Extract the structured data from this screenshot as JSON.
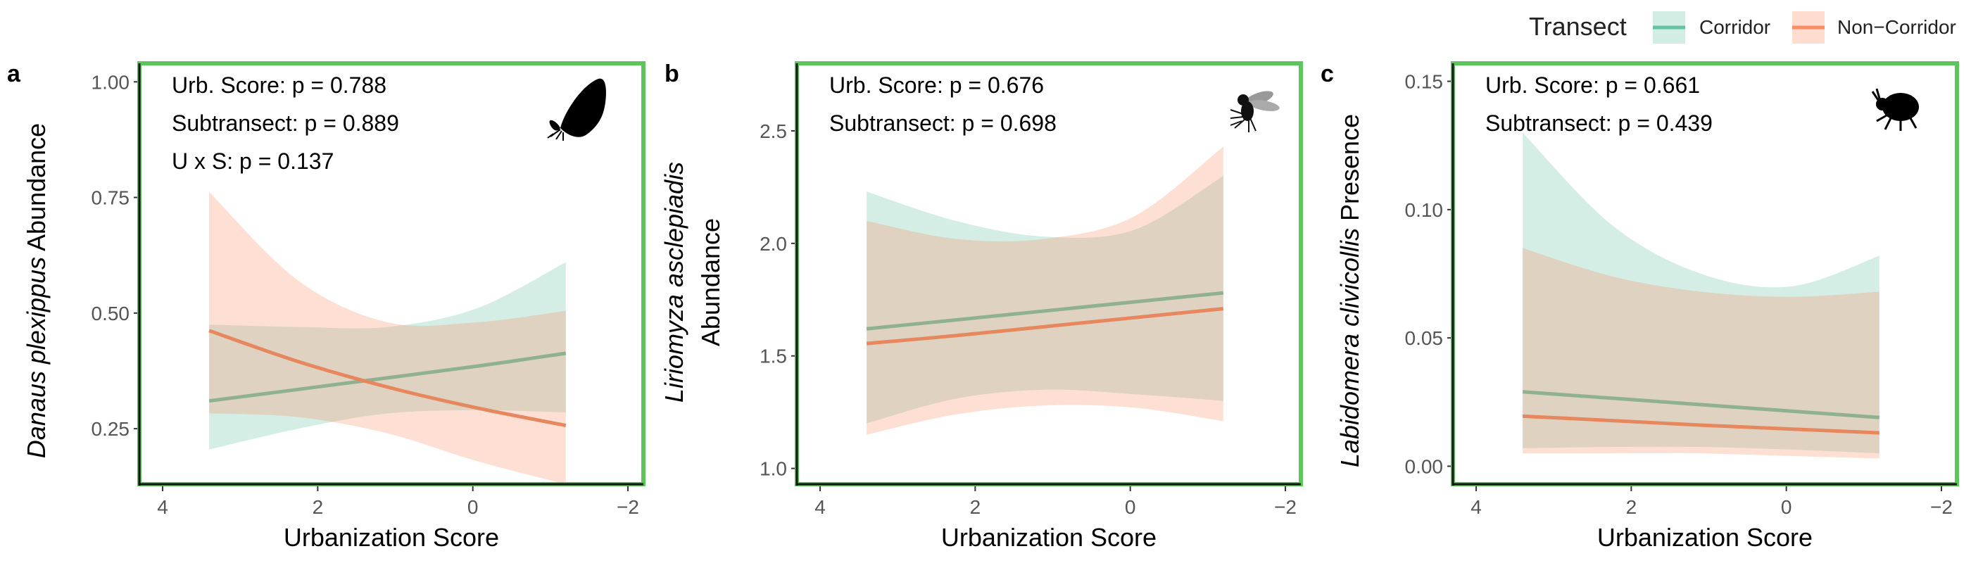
{
  "legend": {
    "title": "Transect",
    "items": [
      {
        "label": "Corridor",
        "color": "#66c2a5"
      },
      {
        "label": "Non−Corridor",
        "color": "#fc8d62"
      }
    ]
  },
  "colors": {
    "corridor_line": "#8fb18f",
    "noncorridor_line": "#e6875e",
    "corridor_band": "#66c2a5",
    "noncorridor_band": "#fc8d62",
    "frame": "#5cc65c"
  },
  "chart_data": [
    {
      "panel": "a",
      "type": "line",
      "organism_icon": "butterfly-icon",
      "xlabel": "Urbanization Score",
      "ylabel_italic": "Danaus plexippus",
      "ylabel_rest": " Abundance",
      "xlim": [
        4.3,
        -2.2
      ],
      "ylim": [
        0.13,
        1.04
      ],
      "xticks": [
        4,
        2,
        0,
        -2
      ],
      "xtick_labels": [
        "4",
        "2",
        "0",
        "−2"
      ],
      "yticks": [
        0.25,
        0.5,
        0.75,
        1.0
      ],
      "ytick_labels": [
        "0.25",
        "0.50",
        "0.75",
        "1.00"
      ],
      "annotations": [
        "Urb. Score: p = 0.788",
        "Subtransect: p = 0.889",
        "U x S: p = 0.137"
      ],
      "x": [
        3.4,
        2.25,
        1.1,
        -0.05,
        -1.2
      ],
      "series": [
        {
          "name": "Corridor",
          "values": [
            0.31,
            0.335,
            0.36,
            0.385,
            0.413
          ],
          "lower": [
            0.205,
            0.25,
            0.283,
            0.29,
            0.285
          ],
          "upper": [
            0.475,
            0.47,
            0.47,
            0.51,
            0.61
          ]
        },
        {
          "name": "Non−Corridor",
          "values": [
            0.462,
            0.395,
            0.34,
            0.295,
            0.257
          ],
          "lower": [
            0.283,
            0.275,
            0.24,
            0.18,
            0.13
          ],
          "upper": [
            0.762,
            0.57,
            0.48,
            0.48,
            0.505
          ]
        }
      ]
    },
    {
      "panel": "b",
      "type": "line",
      "organism_icon": "fly-icon",
      "xlabel": "Urbanization Score",
      "ylabel_italic": "Liriomyza asclepiadis",
      "ylabel_line2": "Abundance",
      "xlim": [
        4.3,
        -2.2
      ],
      "ylim": [
        0.93,
        2.8
      ],
      "xticks": [
        4,
        2,
        0,
        -2
      ],
      "xtick_labels": [
        "4",
        "2",
        "0",
        "−2"
      ],
      "yticks": [
        1.0,
        1.5,
        2.0,
        2.5
      ],
      "ytick_labels": [
        "1.0",
        "1.5",
        "2.0",
        "2.5"
      ],
      "annotations": [
        "Urb. Score: p = 0.676",
        "Subtransect: p = 0.698"
      ],
      "x": [
        3.4,
        2.25,
        1.1,
        -0.05,
        -1.2
      ],
      "series": [
        {
          "name": "Corridor",
          "values": [
            1.62,
            1.66,
            1.7,
            1.74,
            1.78
          ],
          "lower": [
            1.2,
            1.31,
            1.35,
            1.33,
            1.3
          ],
          "upper": [
            2.23,
            2.1,
            2.03,
            2.06,
            2.3
          ]
        },
        {
          "name": "Non−Corridor",
          "values": [
            1.555,
            1.59,
            1.63,
            1.67,
            1.71
          ],
          "lower": [
            1.15,
            1.24,
            1.28,
            1.27,
            1.21
          ],
          "upper": [
            2.1,
            2.02,
            2.02,
            2.12,
            2.43
          ]
        }
      ]
    },
    {
      "panel": "c",
      "type": "line",
      "organism_icon": "beetle-icon",
      "xlabel": "Urbanization Score",
      "ylabel_italic": "Labidomera clivicollis",
      "ylabel_rest": " Presence",
      "xlim": [
        4.3,
        -2.2
      ],
      "ylim": [
        -0.007,
        0.157
      ],
      "xticks": [
        4,
        2,
        0,
        -2
      ],
      "xtick_labels": [
        "4",
        "2",
        "0",
        "−2"
      ],
      "yticks": [
        0.0,
        0.05,
        0.1,
        0.15
      ],
      "ytick_labels": [
        "0.00",
        "0.05",
        "0.10",
        "0.15"
      ],
      "annotations": [
        "Urb. Score: p = 0.661",
        "Subtransect: p = 0.439"
      ],
      "x": [
        3.4,
        2.25,
        1.1,
        -0.05,
        -1.2
      ],
      "series": [
        {
          "name": "Corridor",
          "values": [
            0.029,
            0.0265,
            0.024,
            0.0215,
            0.019
          ],
          "lower": [
            0.007,
            0.0075,
            0.0075,
            0.0065,
            0.005
          ],
          "upper": [
            0.13,
            0.094,
            0.075,
            0.07,
            0.082
          ]
        },
        {
          "name": "Non−Corridor",
          "values": [
            0.0195,
            0.0178,
            0.016,
            0.0145,
            0.013
          ],
          "lower": [
            0.005,
            0.005,
            0.005,
            0.004,
            0.003
          ],
          "upper": [
            0.085,
            0.074,
            0.068,
            0.066,
            0.068
          ]
        }
      ]
    }
  ]
}
